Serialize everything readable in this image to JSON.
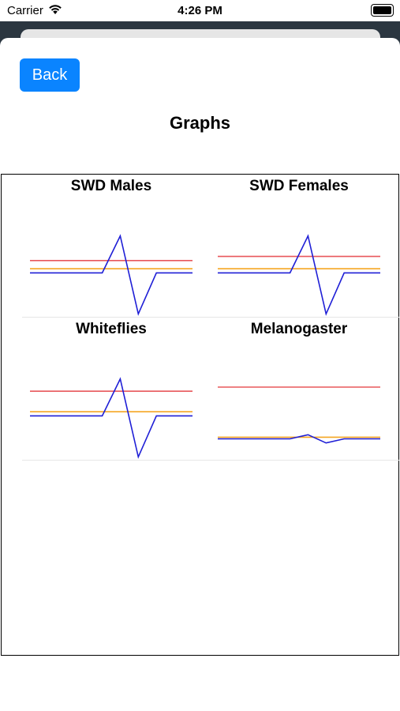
{
  "status_bar": {
    "carrier": "Carrier",
    "time": "4:26 PM"
  },
  "nav": {
    "back_label": "Back",
    "title": "Graphs"
  },
  "graphs": [
    {
      "title": "SWD Males"
    },
    {
      "title": "SWD Females"
    },
    {
      "title": "Whiteflies"
    },
    {
      "title": "Melanogaster"
    }
  ],
  "colors": {
    "red_line": "#e8585c",
    "orange_line": "#f5a623",
    "blue_line": "#1f1fd6",
    "button": "#0a84ff"
  },
  "chart_data": [
    {
      "type": "line",
      "title": "SWD Males",
      "series": [
        {
          "values": [
            0.55,
            0.55,
            0.55,
            0.55,
            0.55,
            0.55,
            0.55,
            0.55,
            0.55,
            0.55
          ]
        },
        {
          "values": [
            0.45,
            0.45,
            0.45,
            0.45,
            0.45,
            0.45,
            0.45,
            0.45,
            0.45,
            0.45
          ]
        },
        {
          "values": [
            0.4,
            0.4,
            0.4,
            0.4,
            0.4,
            0.85,
            -0.1,
            0.4,
            0.4,
            0.4
          ]
        }
      ]
    },
    {
      "type": "line",
      "title": "SWD Females",
      "series": [
        {
          "values": [
            0.6,
            0.6,
            0.6,
            0.6,
            0.6,
            0.6,
            0.6,
            0.6,
            0.6,
            0.6
          ]
        },
        {
          "values": [
            0.45,
            0.45,
            0.45,
            0.45,
            0.45,
            0.45,
            0.45,
            0.45,
            0.45,
            0.45
          ]
        },
        {
          "values": [
            0.4,
            0.4,
            0.4,
            0.4,
            0.4,
            0.85,
            -0.1,
            0.4,
            0.4,
            0.4
          ]
        }
      ]
    },
    {
      "type": "line",
      "title": "Whiteflies",
      "series": [
        {
          "values": [
            0.7,
            0.7,
            0.7,
            0.7,
            0.7,
            0.7,
            0.7,
            0.7,
            0.7,
            0.7
          ]
        },
        {
          "values": [
            0.45,
            0.45,
            0.45,
            0.45,
            0.45,
            0.45,
            0.45,
            0.45,
            0.45,
            0.45
          ]
        },
        {
          "values": [
            0.4,
            0.4,
            0.4,
            0.4,
            0.4,
            0.85,
            -0.1,
            0.4,
            0.4,
            0.4
          ]
        }
      ]
    },
    {
      "type": "line",
      "title": "Melanogaster",
      "series": [
        {
          "values": [
            0.75,
            0.75,
            0.75,
            0.75,
            0.75,
            0.75,
            0.75,
            0.75,
            0.75,
            0.75
          ]
        },
        {
          "values": [
            0.14,
            0.14,
            0.14,
            0.14,
            0.14,
            0.14,
            0.14,
            0.14,
            0.14,
            0.14
          ]
        },
        {
          "values": [
            0.12,
            0.12,
            0.12,
            0.12,
            0.12,
            0.17,
            0.07,
            0.12,
            0.12,
            0.12
          ]
        }
      ]
    }
  ]
}
